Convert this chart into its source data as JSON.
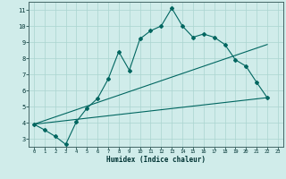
{
  "xlabel": "Humidex (Indice chaleur)",
  "bg_color": "#d0ecea",
  "grid_color": "#aad4d0",
  "line_color": "#006660",
  "xlim": [
    -0.5,
    23.5
  ],
  "ylim": [
    2.5,
    11.5
  ],
  "xticks": [
    0,
    1,
    2,
    3,
    4,
    5,
    6,
    7,
    8,
    9,
    10,
    11,
    12,
    13,
    14,
    15,
    16,
    17,
    18,
    19,
    20,
    21,
    22,
    23
  ],
  "yticks": [
    3,
    4,
    5,
    6,
    7,
    8,
    9,
    10,
    11
  ],
  "curve_x": [
    0,
    1,
    2,
    3,
    4,
    5,
    6,
    7,
    8,
    9,
    10,
    11,
    12,
    13,
    14,
    15,
    16,
    17,
    18,
    19,
    20,
    21,
    22
  ],
  "curve_y": [
    3.9,
    3.55,
    3.15,
    2.65,
    4.05,
    4.9,
    5.5,
    6.7,
    8.4,
    7.25,
    9.2,
    9.7,
    10.0,
    11.1,
    10.0,
    9.3,
    9.5,
    9.3,
    8.85,
    7.9,
    7.5,
    6.5,
    5.55
  ],
  "line1_x": [
    0,
    22
  ],
  "line1_y": [
    3.9,
    5.55
  ],
  "line2_x": [
    0,
    22
  ],
  "line2_y": [
    3.9,
    8.85
  ]
}
